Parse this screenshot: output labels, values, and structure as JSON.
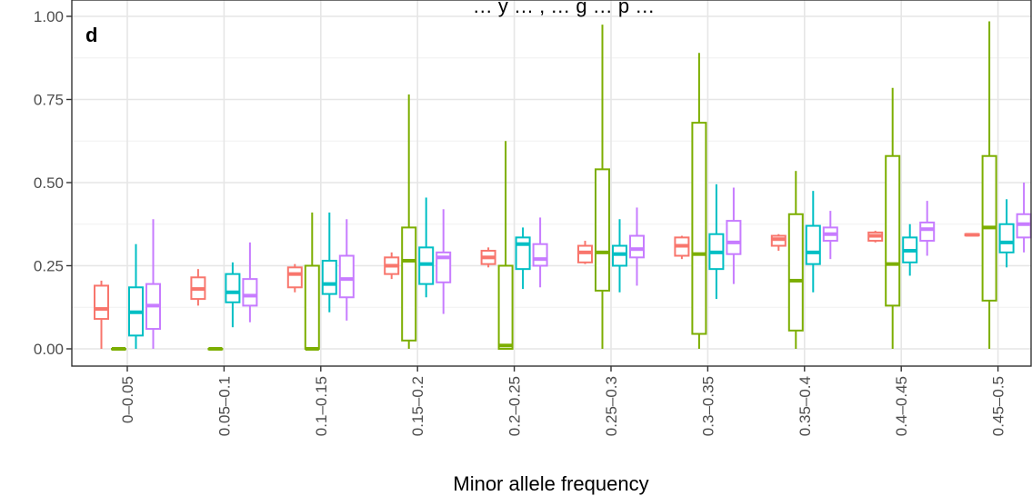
{
  "chart_data": {
    "type": "boxplot",
    "title": "… y … , … g … p …",
    "panel_tag": "d",
    "xlabel": "Minor allele frequency",
    "ylabel": "",
    "ylim": [
      0,
      1
    ],
    "y_ticks": [
      "0.00",
      "0.25",
      "0.50",
      "0.75",
      "1.00"
    ],
    "grid": true,
    "series_colors": [
      "#F8766D",
      "#7CAE00",
      "#00BFC4",
      "#C77CFF"
    ],
    "categories": [
      "0–0.05",
      "0.05–0.1",
      "0.1–0.15",
      "0.15–0.2",
      "0.2–0.25",
      "0.25–0.3",
      "0.3–0.35",
      "0.35–0.4",
      "0.4–0.45",
      "0.45–0.5"
    ],
    "series": [
      {
        "boxes": [
          {
            "min": 0.0,
            "q1": 0.09,
            "median": 0.12,
            "q3": 0.19,
            "max": 0.205
          },
          {
            "min": 0.13,
            "q1": 0.15,
            "median": 0.18,
            "q3": 0.215,
            "max": 0.24
          },
          {
            "min": 0.17,
            "q1": 0.185,
            "median": 0.225,
            "q3": 0.245,
            "max": 0.255
          },
          {
            "min": 0.21,
            "q1": 0.225,
            "median": 0.25,
            "q3": 0.275,
            "max": 0.29
          },
          {
            "min": 0.245,
            "q1": 0.255,
            "median": 0.275,
            "q3": 0.295,
            "max": 0.305
          },
          {
            "min": 0.255,
            "q1": 0.26,
            "median": 0.29,
            "q3": 0.31,
            "max": 0.325
          },
          {
            "min": 0.27,
            "q1": 0.28,
            "median": 0.31,
            "q3": 0.335,
            "max": 0.34
          },
          {
            "min": 0.295,
            "q1": 0.31,
            "median": 0.33,
            "q3": 0.34,
            "max": 0.345
          },
          {
            "min": 0.32,
            "q1": 0.325,
            "median": 0.34,
            "q3": 0.35,
            "max": 0.355
          },
          {
            "min": 0.34,
            "q1": 0.341,
            "median": 0.343,
            "q3": 0.345,
            "max": 0.348
          }
        ]
      },
      {
        "boxes": [
          {
            "min": 0.0,
            "q1": 0.0,
            "median": 0.0,
            "q3": 0.0,
            "max": 0.0
          },
          {
            "min": 0.0,
            "q1": 0.0,
            "median": 0.0,
            "q3": 0.0,
            "max": 0.0
          },
          {
            "min": 0.0,
            "q1": 0.0,
            "median": 0.0,
            "q3": 0.25,
            "max": 0.41
          },
          {
            "min": 0.0,
            "q1": 0.025,
            "median": 0.265,
            "q3": 0.365,
            "max": 0.765
          },
          {
            "min": 0.0,
            "q1": 0.0,
            "median": 0.01,
            "q3": 0.25,
            "max": 0.625
          },
          {
            "min": 0.0,
            "q1": 0.175,
            "median": 0.29,
            "q3": 0.54,
            "max": 0.975
          },
          {
            "min": 0.0,
            "q1": 0.045,
            "median": 0.285,
            "q3": 0.68,
            "max": 0.89
          },
          {
            "min": 0.0,
            "q1": 0.055,
            "median": 0.205,
            "q3": 0.405,
            "max": 0.535
          },
          {
            "min": 0.0,
            "q1": 0.13,
            "median": 0.255,
            "q3": 0.58,
            "max": 0.785
          },
          {
            "min": 0.0,
            "q1": 0.145,
            "median": 0.365,
            "q3": 0.58,
            "max": 0.985
          }
        ]
      },
      {
        "boxes": [
          {
            "min": 0.0,
            "q1": 0.04,
            "median": 0.11,
            "q3": 0.185,
            "max": 0.315
          },
          {
            "min": 0.065,
            "q1": 0.14,
            "median": 0.17,
            "q3": 0.225,
            "max": 0.26
          },
          {
            "min": 0.11,
            "q1": 0.165,
            "median": 0.195,
            "q3": 0.265,
            "max": 0.41
          },
          {
            "min": 0.155,
            "q1": 0.195,
            "median": 0.255,
            "q3": 0.305,
            "max": 0.455
          },
          {
            "min": 0.18,
            "q1": 0.24,
            "median": 0.315,
            "q3": 0.335,
            "max": 0.365
          },
          {
            "min": 0.17,
            "q1": 0.25,
            "median": 0.285,
            "q3": 0.31,
            "max": 0.39
          },
          {
            "min": 0.15,
            "q1": 0.24,
            "median": 0.29,
            "q3": 0.345,
            "max": 0.495
          },
          {
            "min": 0.17,
            "q1": 0.255,
            "median": 0.29,
            "q3": 0.37,
            "max": 0.475
          },
          {
            "min": 0.22,
            "q1": 0.26,
            "median": 0.295,
            "q3": 0.335,
            "max": 0.375
          },
          {
            "min": 0.245,
            "q1": 0.29,
            "median": 0.32,
            "q3": 0.375,
            "max": 0.45
          }
        ]
      },
      {
        "boxes": [
          {
            "min": 0.0,
            "q1": 0.06,
            "median": 0.13,
            "q3": 0.195,
            "max": 0.39
          },
          {
            "min": 0.08,
            "q1": 0.13,
            "median": 0.16,
            "q3": 0.21,
            "max": 0.32
          },
          {
            "min": 0.085,
            "q1": 0.155,
            "median": 0.21,
            "q3": 0.28,
            "max": 0.39
          },
          {
            "min": 0.105,
            "q1": 0.2,
            "median": 0.275,
            "q3": 0.29,
            "max": 0.42
          },
          {
            "min": 0.185,
            "q1": 0.25,
            "median": 0.27,
            "q3": 0.315,
            "max": 0.395
          },
          {
            "min": 0.19,
            "q1": 0.275,
            "median": 0.3,
            "q3": 0.34,
            "max": 0.425
          },
          {
            "min": 0.195,
            "q1": 0.285,
            "median": 0.32,
            "q3": 0.385,
            "max": 0.485
          },
          {
            "min": 0.27,
            "q1": 0.325,
            "median": 0.345,
            "q3": 0.365,
            "max": 0.415
          },
          {
            "min": 0.28,
            "q1": 0.325,
            "median": 0.36,
            "q3": 0.38,
            "max": 0.445
          },
          {
            "min": 0.29,
            "q1": 0.335,
            "median": 0.375,
            "q3": 0.405,
            "max": 0.5
          }
        ]
      }
    ]
  }
}
